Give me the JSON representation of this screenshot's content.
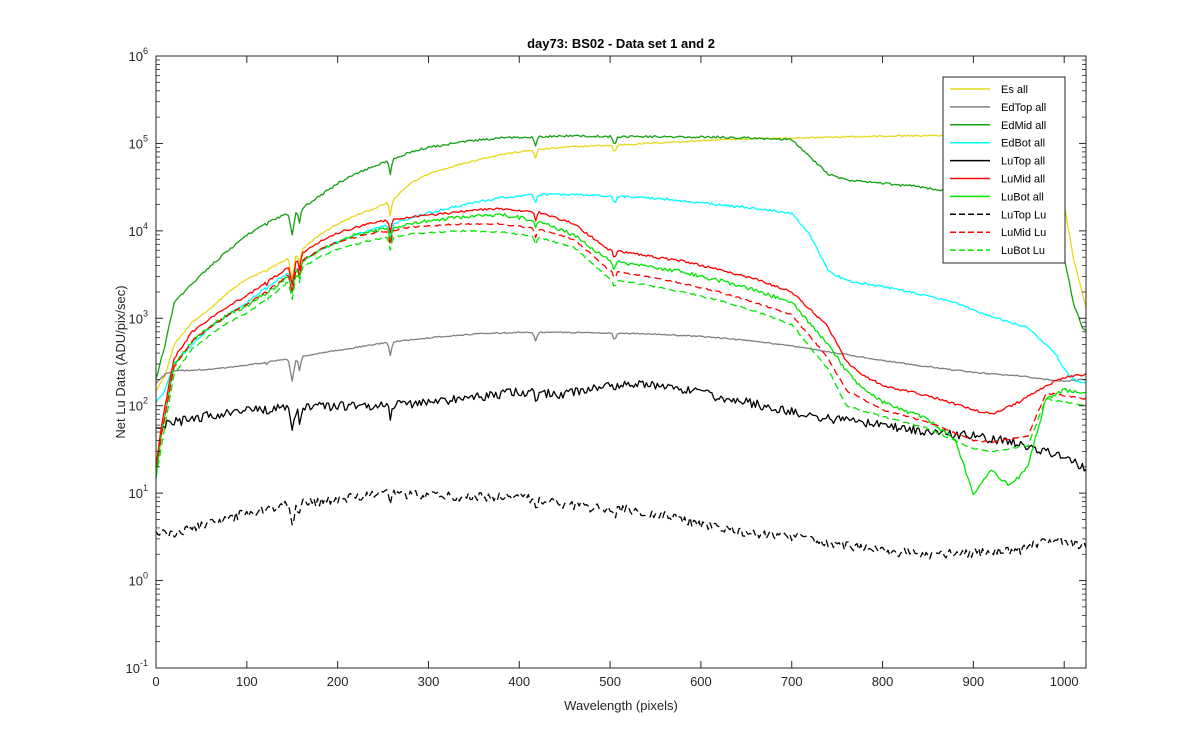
{
  "chart_data": {
    "type": "line",
    "title": "day73: BS02 - Data set 1 and 2",
    "xlabel": "Wavelength (pixels)",
    "ylabel": "Net Lu Data (ADU/pix/sec)",
    "xlim": [
      0,
      1024
    ],
    "ylim": [
      0.1,
      1000000
    ],
    "yscale": "log",
    "grid": false,
    "legend_position": "top-right",
    "xticks": [
      "0",
      "100",
      "200",
      "300",
      "400",
      "500",
      "600",
      "700",
      "800",
      "900",
      "1000"
    ],
    "xtick_values": [
      0,
      100,
      200,
      300,
      400,
      500,
      600,
      700,
      800,
      900,
      1000
    ],
    "yticks": [
      {
        "base": "10",
        "exp": "-1",
        "value": 0.1
      },
      {
        "base": "10",
        "exp": "0",
        "value": 1
      },
      {
        "base": "10",
        "exp": "1",
        "value": 10
      },
      {
        "base": "10",
        "exp": "2",
        "value": 100
      },
      {
        "base": "10",
        "exp": "3",
        "value": 1000
      },
      {
        "base": "10",
        "exp": "4",
        "value": 10000
      },
      {
        "base": "10",
        "exp": "5",
        "value": 100000
      },
      {
        "base": "10",
        "exp": "6",
        "value": 1000000
      }
    ],
    "series": [
      {
        "name": "Es  all",
        "color": "#E6D81A",
        "dash": "solid",
        "noise": 0.02,
        "x": [
          0,
          10,
          20,
          40,
          60,
          80,
          100,
          120,
          140,
          160,
          180,
          200,
          220,
          240,
          260,
          280,
          300,
          340,
          380,
          420,
          460,
          500,
          540,
          580,
          620,
          660,
          700,
          740,
          780,
          820,
          860,
          900,
          940,
          980,
          1000,
          1010,
          1024
        ],
        "y": [
          150,
          220,
          500,
          900,
          1300,
          2000,
          2800,
          3500,
          4500,
          6000,
          9000,
          12000,
          15000,
          18000,
          22000,
          35000,
          45000,
          60000,
          75000,
          85000,
          92000,
          95000,
          100000,
          105000,
          110000,
          113000,
          115000,
          118000,
          120000,
          122000,
          123000,
          120000,
          105000,
          70000,
          20000,
          5000,
          1300
        ]
      },
      {
        "name": "EdTop  all",
        "color": "#808080",
        "dash": "solid",
        "noise": 0.015,
        "x": [
          0,
          10,
          20,
          60,
          100,
          150,
          200,
          250,
          300,
          350,
          400,
          450,
          500,
          550,
          600,
          650,
          700,
          750,
          800,
          850,
          900,
          950,
          980,
          1000,
          1024
        ],
        "y": [
          180,
          230,
          250,
          260,
          290,
          350,
          430,
          520,
          600,
          660,
          690,
          690,
          680,
          660,
          620,
          560,
          480,
          400,
          330,
          280,
          240,
          220,
          200,
          190,
          200
        ]
      },
      {
        "name": "EdMid  all",
        "color": "#13A113",
        "dash": "solid",
        "noise": 0.03,
        "x": [
          0,
          10,
          20,
          40,
          60,
          80,
          100,
          120,
          140,
          160,
          180,
          200,
          220,
          240,
          260,
          280,
          300,
          340,
          380,
          420,
          460,
          500,
          540,
          580,
          620,
          660,
          700,
          720,
          740,
          760,
          800,
          840,
          880,
          920,
          950,
          980,
          1000,
          1010,
          1020,
          1024
        ],
        "y": [
          200,
          500,
          1500,
          2500,
          4000,
          6000,
          9000,
          12000,
          15000,
          18000,
          25000,
          35000,
          45000,
          55000,
          65000,
          80000,
          90000,
          105000,
          115000,
          120000,
          122000,
          120000,
          120000,
          118000,
          118000,
          115000,
          110000,
          70000,
          45000,
          38000,
          35000,
          32000,
          28000,
          26000,
          24000,
          15000,
          5000,
          1500,
          800,
          700
        ]
      },
      {
        "name": "EdBot  all",
        "color": "#00FFFF",
        "dash": "solid",
        "noise": 0.03,
        "x": [
          0,
          10,
          20,
          40,
          60,
          80,
          100,
          120,
          140,
          160,
          180,
          200,
          220,
          240,
          260,
          280,
          300,
          340,
          380,
          420,
          460,
          500,
          540,
          580,
          620,
          660,
          700,
          720,
          740,
          760,
          800,
          840,
          880,
          920,
          960,
          990,
          1000,
          1010,
          1024
        ],
        "y": [
          110,
          150,
          300,
          500,
          800,
          1100,
          1500,
          2200,
          3000,
          4500,
          6000,
          7500,
          9000,
          10500,
          12000,
          14000,
          16000,
          20000,
          24000,
          26000,
          26000,
          25000,
          24000,
          22000,
          20000,
          18000,
          16000,
          9000,
          3500,
          2700,
          2300,
          1900,
          1500,
          1050,
          780,
          400,
          260,
          200,
          180
        ]
      },
      {
        "name": "LuTop  all",
        "color": "#000000",
        "dash": "solid",
        "noise": 0.12,
        "x": [
          0,
          20,
          60,
          100,
          150,
          200,
          250,
          300,
          350,
          400,
          450,
          500,
          520,
          550,
          600,
          650,
          700,
          750,
          800,
          850,
          900,
          950,
          980,
          1000,
          1024
        ],
        "y": [
          55,
          65,
          78,
          88,
          95,
          100,
          102,
          110,
          125,
          145,
          135,
          175,
          180,
          170,
          140,
          110,
          85,
          70,
          60,
          50,
          45,
          38,
          30,
          25,
          20
        ]
      },
      {
        "name": "LuMid  all",
        "color": "#FF0000",
        "dash": "solid",
        "noise": 0.03,
        "x": [
          0,
          5,
          10,
          20,
          40,
          60,
          80,
          100,
          120,
          140,
          160,
          180,
          200,
          220,
          240,
          260,
          280,
          300,
          340,
          380,
          420,
          460,
          500,
          540,
          580,
          620,
          660,
          700,
          740,
          760,
          780,
          800,
          850,
          900,
          920,
          950,
          980,
          1000,
          1024
        ],
        "y": [
          20,
          50,
          100,
          350,
          700,
          1000,
          1400,
          1800,
          2500,
          3500,
          5500,
          7500,
          9500,
          11000,
          12500,
          13500,
          14500,
          15000,
          17000,
          18000,
          16500,
          12000,
          6000,
          5200,
          4500,
          3600,
          2800,
          2000,
          800,
          320,
          220,
          170,
          130,
          90,
          80,
          110,
          170,
          210,
          230
        ]
      },
      {
        "name": "LuBot  all",
        "color": "#00E600",
        "dash": "solid",
        "noise": 0.05,
        "x": [
          0,
          5,
          10,
          20,
          40,
          60,
          80,
          100,
          120,
          140,
          160,
          180,
          200,
          220,
          240,
          260,
          280,
          300,
          340,
          380,
          420,
          460,
          500,
          540,
          580,
          620,
          660,
          700,
          740,
          760,
          780,
          800,
          850,
          880,
          900,
          920,
          940,
          960,
          980,
          1000,
          1024
        ],
        "y": [
          15,
          40,
          80,
          300,
          550,
          800,
          1100,
          1400,
          1900,
          2700,
          4500,
          6000,
          7500,
          9000,
          10000,
          11000,
          12000,
          13000,
          14500,
          15500,
          13000,
          9000,
          4500,
          3900,
          3400,
          2700,
          2100,
          1500,
          500,
          250,
          150,
          110,
          70,
          40,
          10,
          18,
          12,
          20,
          120,
          150,
          140
        ]
      },
      {
        "name": "LuTop  Lu",
        "color": "#000000",
        "dash": "dashed",
        "noise": 0.12,
        "x": [
          0,
          20,
          60,
          100,
          150,
          200,
          250,
          300,
          350,
          400,
          450,
          500,
          520,
          560,
          600,
          650,
          700,
          750,
          800,
          850,
          900,
          950,
          980,
          1000,
          1024
        ],
        "y": [
          3.5,
          3.5,
          4.5,
          6,
          7.5,
          8.5,
          10,
          9.5,
          9,
          9,
          7.5,
          6.5,
          6.5,
          5.5,
          4.5,
          3.5,
          3.2,
          2.6,
          2.2,
          2.0,
          2.1,
          2.2,
          3,
          2.8,
          2.5
        ]
      },
      {
        "name": "LuMid  Lu",
        "color": "#FF0000",
        "dash": "dashed",
        "noise": 0.02,
        "x": [
          0,
          10,
          20,
          40,
          60,
          80,
          100,
          120,
          140,
          160,
          180,
          200,
          220,
          240,
          260,
          280,
          300,
          340,
          380,
          420,
          460,
          500,
          540,
          580,
          620,
          660,
          700,
          740,
          760,
          800,
          850,
          900,
          920,
          960,
          980,
          1000,
          1024
        ],
        "y": [
          20,
          80,
          280,
          550,
          800,
          1100,
          1450,
          2000,
          2800,
          4500,
          6000,
          7500,
          8500,
          9500,
          10000,
          11000,
          11500,
          12000,
          12000,
          10500,
          8000,
          3500,
          3000,
          2500,
          2000,
          1500,
          1100,
          350,
          150,
          90,
          65,
          40,
          38,
          45,
          140,
          130,
          120
        ]
      },
      {
        "name": "LuBot  Lu",
        "color": "#00E600",
        "dash": "dashed",
        "noise": 0.02,
        "x": [
          0,
          10,
          20,
          40,
          60,
          80,
          100,
          120,
          140,
          160,
          180,
          200,
          220,
          240,
          260,
          280,
          300,
          340,
          380,
          420,
          460,
          500,
          540,
          580,
          620,
          660,
          700,
          740,
          760,
          800,
          850,
          900,
          920,
          960,
          980,
          1000,
          1024
        ],
        "y": [
          15,
          60,
          230,
          450,
          650,
          900,
          1150,
          1600,
          2300,
          3800,
          5000,
          6200,
          7000,
          8000,
          8500,
          9200,
          9500,
          10000,
          9800,
          8500,
          6500,
          2800,
          2400,
          2000,
          1600,
          1200,
          850,
          260,
          100,
          75,
          55,
          32,
          30,
          35,
          120,
          110,
          100
        ]
      }
    ]
  }
}
